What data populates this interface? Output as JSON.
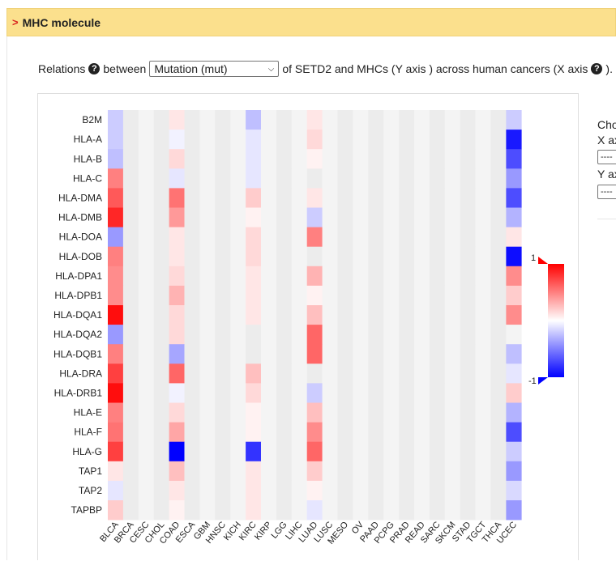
{
  "header": {
    "arrow": ">",
    "title": "MHC molecule"
  },
  "relation": {
    "prefix": "Relations",
    "between": "between",
    "select_value": "Mutation (mut)",
    "suffix": "of SETD2 and MHCs (Y axis ) across human cancers (X axis",
    "end": ")."
  },
  "side_panel": {
    "choose": "Cho",
    "x_axis": "X ax",
    "y_axis": "Y ax",
    "select_placeholder": "----"
  },
  "colors": {
    "positive": "#ff0000",
    "negative": "#0000ff",
    "neutral": "#ffffff",
    "header_bg": "#fbe08d",
    "arrow": "#d9231f"
  },
  "chart_data": {
    "type": "heatmap",
    "title": "",
    "y_categories": [
      "B2M",
      "HLA-A",
      "HLA-B",
      "HLA-C",
      "HLA-DMA",
      "HLA-DMB",
      "HLA-DOA",
      "HLA-DOB",
      "HLA-DPA1",
      "HLA-DPB1",
      "HLA-DQA1",
      "HLA-DQA2",
      "HLA-DQB1",
      "HLA-DRA",
      "HLA-DRB1",
      "HLA-E",
      "HLA-F",
      "HLA-G",
      "TAP1",
      "TAP2",
      "TAPBP"
    ],
    "x_categories": [
      "BLCA",
      "BRCA",
      "CESC",
      "CHOL",
      "COAD",
      "ESCA",
      "GBM",
      "HNSC",
      "KICH",
      "KIRC",
      "KIRP",
      "LGG",
      "LIHC",
      "LUAD",
      "LUSC",
      "MESO",
      "OV",
      "PAAD",
      "PCPG",
      "PRAD",
      "READ",
      "SARC",
      "SKCM",
      "STAD",
      "TGCT",
      "THCA",
      "UCEC"
    ],
    "values": [
      [
        -0.2,
        0,
        0,
        0,
        0.1,
        0,
        0,
        0,
        0,
        -0.25,
        0,
        0,
        0,
        0.1,
        0,
        0,
        0,
        0,
        0,
        0,
        0,
        0,
        0,
        0,
        0,
        0,
        -0.2
      ],
      [
        -0.2,
        0,
        0,
        0,
        -0.05,
        0,
        0,
        0,
        0,
        -0.1,
        0,
        0,
        0,
        0.15,
        0,
        0,
        0,
        0,
        0,
        0,
        0,
        0,
        0,
        0,
        0,
        0,
        -0.9
      ],
      [
        -0.25,
        0,
        0,
        0,
        0.15,
        0,
        0,
        0,
        0,
        -0.1,
        0,
        0,
        0,
        0.05,
        0,
        0,
        0,
        0,
        0,
        0,
        0,
        0,
        0,
        0,
        0,
        0,
        -0.7
      ],
      [
        0.5,
        0,
        0,
        0,
        -0.1,
        0,
        0,
        0,
        0,
        -0.1,
        0,
        0,
        0,
        0,
        0,
        0,
        0,
        0,
        0,
        0,
        0,
        0,
        0,
        0,
        0,
        0,
        -0.4
      ],
      [
        0.65,
        0,
        0,
        0,
        0.55,
        0,
        0,
        0,
        0,
        0.2,
        0,
        0,
        0,
        0.1,
        0,
        0,
        0,
        0,
        0,
        0,
        0,
        0,
        0,
        0,
        0,
        0,
        -0.7
      ],
      [
        0.85,
        0,
        0,
        0,
        0.4,
        0,
        0,
        0,
        0,
        0.05,
        0,
        0,
        0,
        -0.2,
        0,
        0,
        0,
        0,
        0,
        0,
        0,
        0,
        0,
        0,
        0,
        0,
        -0.3
      ],
      [
        -0.4,
        0,
        0,
        0,
        0.1,
        0,
        0,
        0,
        0,
        0.15,
        0,
        0,
        0,
        0.5,
        0,
        0,
        0,
        0,
        0,
        0,
        0,
        0,
        0,
        0,
        0,
        0,
        0.1
      ],
      [
        0.5,
        0,
        0,
        0,
        0.1,
        0,
        0,
        0,
        0,
        0.15,
        0,
        0,
        0,
        0,
        0,
        0,
        0,
        0,
        0,
        0,
        0,
        0,
        0,
        0,
        0,
        0,
        -0.95
      ],
      [
        0.45,
        0,
        0,
        0,
        0.15,
        0,
        0,
        0,
        0,
        0.1,
        0,
        0,
        0,
        0.3,
        0,
        0,
        0,
        0,
        0,
        0,
        0,
        0,
        0,
        0,
        0,
        0,
        0.45
      ],
      [
        0.45,
        0,
        0,
        0,
        0.3,
        0,
        0,
        0,
        0,
        0.1,
        0,
        0,
        0,
        0.05,
        0,
        0,
        0,
        0,
        0,
        0,
        0,
        0,
        0,
        0,
        0,
        0,
        0.2
      ],
      [
        0.95,
        0,
        0,
        0,
        0.15,
        0,
        0,
        0,
        0,
        0.1,
        0,
        0,
        0,
        0.25,
        0,
        0,
        0,
        0,
        0,
        0,
        0,
        0,
        0,
        0,
        0,
        0,
        0.45
      ],
      [
        -0.4,
        0,
        0,
        0,
        0.15,
        0,
        0,
        0,
        0,
        0,
        0,
        0,
        0,
        0.6,
        0,
        0,
        0,
        0,
        0,
        0,
        0,
        0,
        0,
        0,
        0,
        0,
        0
      ],
      [
        0.5,
        0,
        0,
        0,
        -0.35,
        0,
        0,
        0,
        0,
        0,
        0,
        0,
        0,
        0.6,
        0,
        0,
        0,
        0,
        0,
        0,
        0,
        0,
        0,
        0,
        0,
        0,
        -0.25
      ],
      [
        0.75,
        0,
        0,
        0,
        0.6,
        0,
        0,
        0,
        0,
        0.25,
        0,
        0,
        0,
        0,
        0,
        0,
        0,
        0,
        0,
        0,
        0,
        0,
        0,
        0,
        0,
        0,
        -0.1
      ],
      [
        0.95,
        0,
        0,
        0,
        -0.05,
        0,
        0,
        0,
        0,
        0.15,
        0,
        0,
        0,
        -0.2,
        0,
        0,
        0,
        0,
        0,
        0,
        0,
        0,
        0,
        0,
        0,
        0,
        0.2
      ],
      [
        0.5,
        0,
        0,
        0,
        0.15,
        0,
        0,
        0,
        0,
        0.05,
        0,
        0,
        0,
        0.25,
        0,
        0,
        0,
        0,
        0,
        0,
        0,
        0,
        0,
        0,
        0,
        0,
        -0.3
      ],
      [
        0.55,
        0,
        0,
        0,
        0.35,
        0,
        0,
        0,
        0,
        0.05,
        0,
        0,
        0,
        0.45,
        0,
        0,
        0,
        0,
        0,
        0,
        0,
        0,
        0,
        0,
        0,
        0,
        -0.7
      ],
      [
        0.75,
        0,
        0,
        0,
        -1,
        0,
        0,
        0,
        0,
        -0.8,
        0,
        0,
        0,
        0.6,
        0,
        0,
        0,
        0,
        0,
        0,
        0,
        0,
        0,
        0,
        0,
        0,
        -0.2
      ],
      [
        0.1,
        0,
        0,
        0,
        0.25,
        0,
        0,
        0,
        0,
        0.1,
        0,
        0,
        0,
        0.2,
        0,
        0,
        0,
        0,
        0,
        0,
        0,
        0,
        0,
        0,
        0,
        0,
        -0.4
      ],
      [
        -0.1,
        0,
        0,
        0,
        0.1,
        0,
        0,
        0,
        0,
        0.1,
        0,
        0,
        0,
        0.05,
        0,
        0,
        0,
        0,
        0,
        0,
        0,
        0,
        0,
        0,
        0,
        0,
        -0.15
      ],
      [
        0.2,
        0,
        0,
        0,
        0.05,
        0,
        0,
        0,
        0,
        0.1,
        0,
        0,
        0,
        -0.1,
        0,
        0,
        0,
        0,
        0,
        0,
        0,
        0,
        0,
        0,
        0,
        0,
        -0.4
      ]
    ],
    "color_scale": {
      "min": -1,
      "max": 1,
      "min_label": "-1",
      "max_label": "1"
    },
    "legend_position": "right"
  }
}
